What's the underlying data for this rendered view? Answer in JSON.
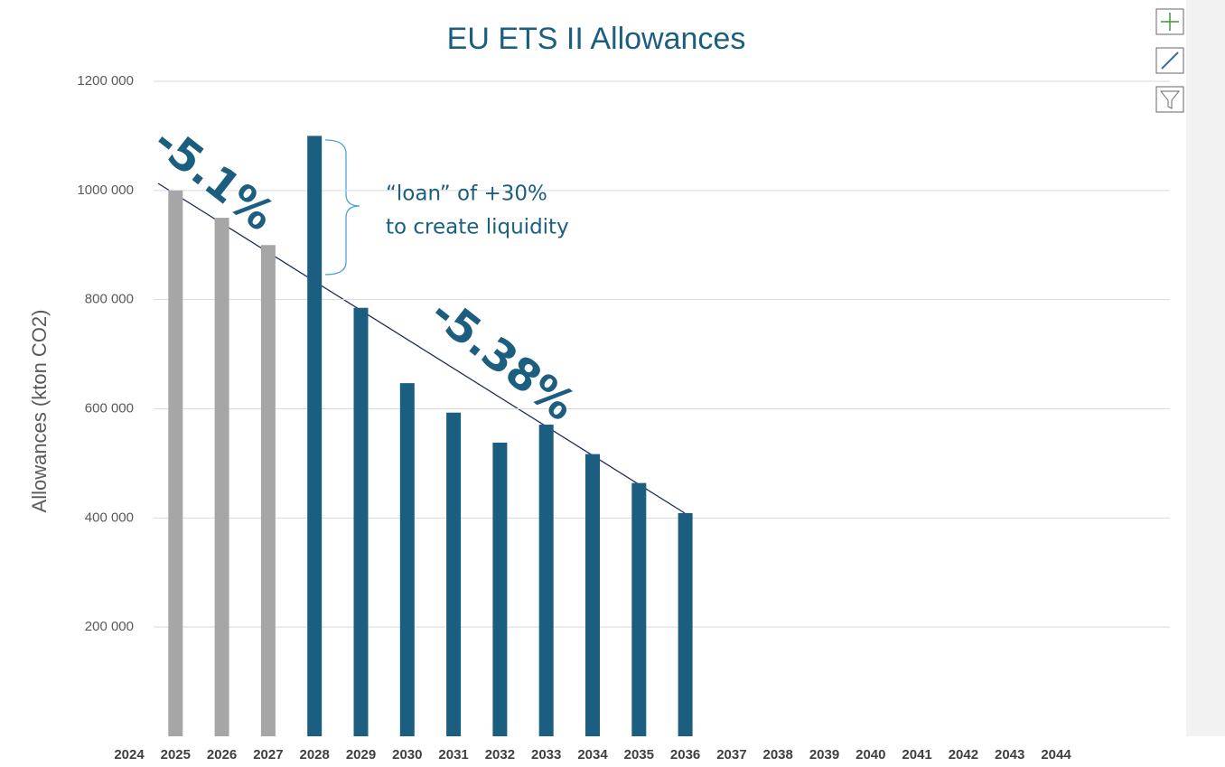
{
  "chart_data": {
    "type": "bar",
    "title": "EU ETS II Allowances",
    "y_label": "Allowances (kton CO2)",
    "categories": [
      "2024",
      "2025",
      "2026",
      "2027",
      "2028",
      "2029",
      "2030",
      "2031",
      "2032",
      "2033",
      "2034",
      "2035",
      "2036",
      "2037",
      "2038",
      "2039",
      "2040",
      "2041",
      "2042",
      "2043",
      "2044"
    ],
    "values": [
      null,
      1000000,
      950000,
      900000,
      1100000,
      785000,
      647000,
      593000,
      538000,
      571000,
      517000,
      464000,
      409000,
      null,
      null,
      null,
      null,
      null,
      null,
      null,
      null
    ],
    "colors": [
      null,
      "#a6a6a6",
      "#a6a6a6",
      "#a6a6a6",
      "#1b5e80",
      "#1b5e80",
      "#1b5e80",
      "#1b5e80",
      "#1b5e80",
      "#1b5e80",
      "#1b5e80",
      "#1b5e80",
      "#1b5e80",
      null,
      null,
      null,
      null,
      null,
      null,
      null,
      null
    ],
    "ylim": [
      0,
      1200000
    ],
    "yticks": [
      {
        "value": 200000,
        "label": "200 000"
      },
      {
        "value": 400000,
        "label": "400 000"
      },
      {
        "value": 600000,
        "label": "600 000"
      },
      {
        "value": 800000,
        "label": "800 000"
      },
      {
        "value": 1000000,
        "label": "1000 000"
      },
      {
        "value": 1200000,
        "label": "1200 000"
      }
    ],
    "grid": true,
    "annotations": [
      "-5.1%",
      "-5.38%",
      "“loan” of +30%",
      "to create liquidity"
    ]
  }
}
